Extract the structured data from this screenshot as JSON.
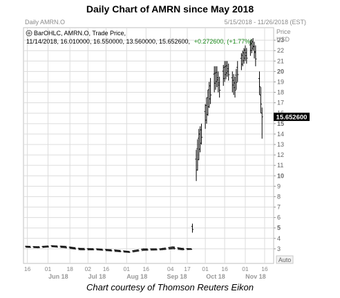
{
  "title": "Daily Chart of AMRN since May 2018",
  "caption": "Chart courtesy of Thomson Reuters Eikon",
  "chart_header": {
    "left": "Daily AMRN.O",
    "date_range": "5/15/2018 - 11/26/2018 (EST)",
    "price_label": "Price",
    "currency_label": "USD",
    "legend_line": "BarOHLC, AMRN.O, Trade Price,",
    "ohlc_line": "11/14/2018, 16.010000, 16.550000, 13.560000, 15.652600,",
    "change_text": "+0.272600, (+1.77%)",
    "auto_button": "Auto"
  },
  "last_price_label": "15.652600",
  "colors": {
    "up_text": "#1a8a1a",
    "bars": "#000000",
    "grid": "#d9d9d9",
    "price_box": "#000000"
  },
  "icons": {
    "legend_toggle": "circle-plus-icon"
  },
  "chart_data": {
    "type": "bar",
    "subtype": "ohlc",
    "xlabel": "",
    "ylabel": "",
    "ylim": [
      1.6,
      24.2
    ],
    "y_ticks": [
      3,
      4,
      5,
      6,
      7,
      8,
      9,
      10,
      11,
      12,
      13,
      14,
      15,
      16,
      17,
      18,
      19,
      20,
      21,
      22,
      23
    ],
    "y_ticks_bold": [
      5,
      10,
      15,
      20
    ],
    "day_ticks": [
      {
        "date": "2018-05-16",
        "label": "16"
      },
      {
        "date": "2018-06-01",
        "label": "01"
      },
      {
        "date": "2018-06-18",
        "label": "18"
      },
      {
        "date": "2018-07-02",
        "label": "02"
      },
      {
        "date": "2018-07-16",
        "label": "16"
      },
      {
        "date": "2018-08-01",
        "label": "01"
      },
      {
        "date": "2018-08-16",
        "label": "16"
      },
      {
        "date": "2018-09-04",
        "label": "04"
      },
      {
        "date": "2018-09-17",
        "label": "17"
      },
      {
        "date": "2018-10-01",
        "label": "01"
      },
      {
        "date": "2018-10-16",
        "label": "16"
      },
      {
        "date": "2018-11-01",
        "label": "01"
      },
      {
        "date": "2018-11-16",
        "label": "16"
      }
    ],
    "month_labels": [
      {
        "date": "2018-06-09",
        "label": "Jun 18"
      },
      {
        "date": "2018-07-09",
        "label": "Jul 18"
      },
      {
        "date": "2018-08-09",
        "label": "Aug 18"
      },
      {
        "date": "2018-09-09",
        "label": "Sep 18"
      },
      {
        "date": "2018-10-09",
        "label": "Oct 18"
      },
      {
        "date": "2018-11-09",
        "label": "Nov 18"
      }
    ],
    "series": [
      {
        "name": "AMRN.O",
        "ohlc": [
          {
            "date": "2018-05-15",
            "high": 3.3,
            "low": 3.1
          },
          {
            "date": "2018-05-24",
            "high": 3.25,
            "low": 3.05
          },
          {
            "date": "2018-06-04",
            "high": 3.35,
            "low": 3.15
          },
          {
            "date": "2018-06-14",
            "high": 3.3,
            "low": 3.05
          },
          {
            "date": "2018-06-26",
            "high": 3.1,
            "low": 2.85
          },
          {
            "date": "2018-07-09",
            "high": 3.05,
            "low": 2.85
          },
          {
            "date": "2018-07-23",
            "high": 2.95,
            "low": 2.7
          },
          {
            "date": "2018-08-03",
            "high": 2.8,
            "low": 2.6
          },
          {
            "date": "2018-08-14",
            "high": 3.05,
            "low": 2.8
          },
          {
            "date": "2018-08-27",
            "high": 3.05,
            "low": 2.85
          },
          {
            "date": "2018-09-06",
            "high": 3.25,
            "low": 2.95
          },
          {
            "date": "2018-09-13",
            "high": 3.1,
            "low": 2.85
          },
          {
            "date": "2018-09-20",
            "high": 3.05,
            "low": 2.9
          },
          {
            "date": "2018-09-24",
            "high": 12.5,
            "low": 9.5
          },
          {
            "date": "2018-09-26",
            "high": 14.5,
            "low": 11.5
          },
          {
            "date": "2018-09-28",
            "high": 15.0,
            "low": 13.0
          },
          {
            "date": "2018-10-02",
            "high": 17.5,
            "low": 15.0
          },
          {
            "date": "2018-10-04",
            "high": 19.0,
            "low": 16.5
          },
          {
            "date": "2018-10-08",
            "high": 20.5,
            "low": 18.0
          },
          {
            "date": "2018-10-10",
            "high": 20.5,
            "low": 18.5
          },
          {
            "date": "2018-10-12",
            "high": 19.5,
            "low": 17.5
          },
          {
            "date": "2018-10-16",
            "high": 21.0,
            "low": 19.0
          },
          {
            "date": "2018-10-18",
            "high": 21.0,
            "low": 19.5
          },
          {
            "date": "2018-10-22",
            "high": 20.0,
            "low": 18.0
          },
          {
            "date": "2018-10-24",
            "high": 19.5,
            "low": 17.5
          },
          {
            "date": "2018-10-26",
            "high": 21.0,
            "low": 19.0
          },
          {
            "date": "2018-10-30",
            "high": 22.0,
            "low": 20.5
          },
          {
            "date": "2018-11-01",
            "high": 22.5,
            "low": 21.0
          },
          {
            "date": "2018-11-03",
            "high": 22.0,
            "low": 20.5
          },
          {
            "date": "2018-11-05",
            "high": 23.0,
            "low": 21.5
          },
          {
            "date": "2018-11-07",
            "high": 23.2,
            "low": 22.0
          },
          {
            "date": "2018-11-09",
            "high": 22.5,
            "low": 20.5
          },
          {
            "date": "2018-11-11",
            "high": 21.5,
            "low": 19.5
          },
          {
            "date": "2018-11-13",
            "high": 18.5,
            "low": 16.0
          },
          {
            "date": "2018-11-14",
            "open": 16.01,
            "high": 16.55,
            "low": 13.56,
            "close": 15.6526
          }
        ]
      }
    ]
  }
}
